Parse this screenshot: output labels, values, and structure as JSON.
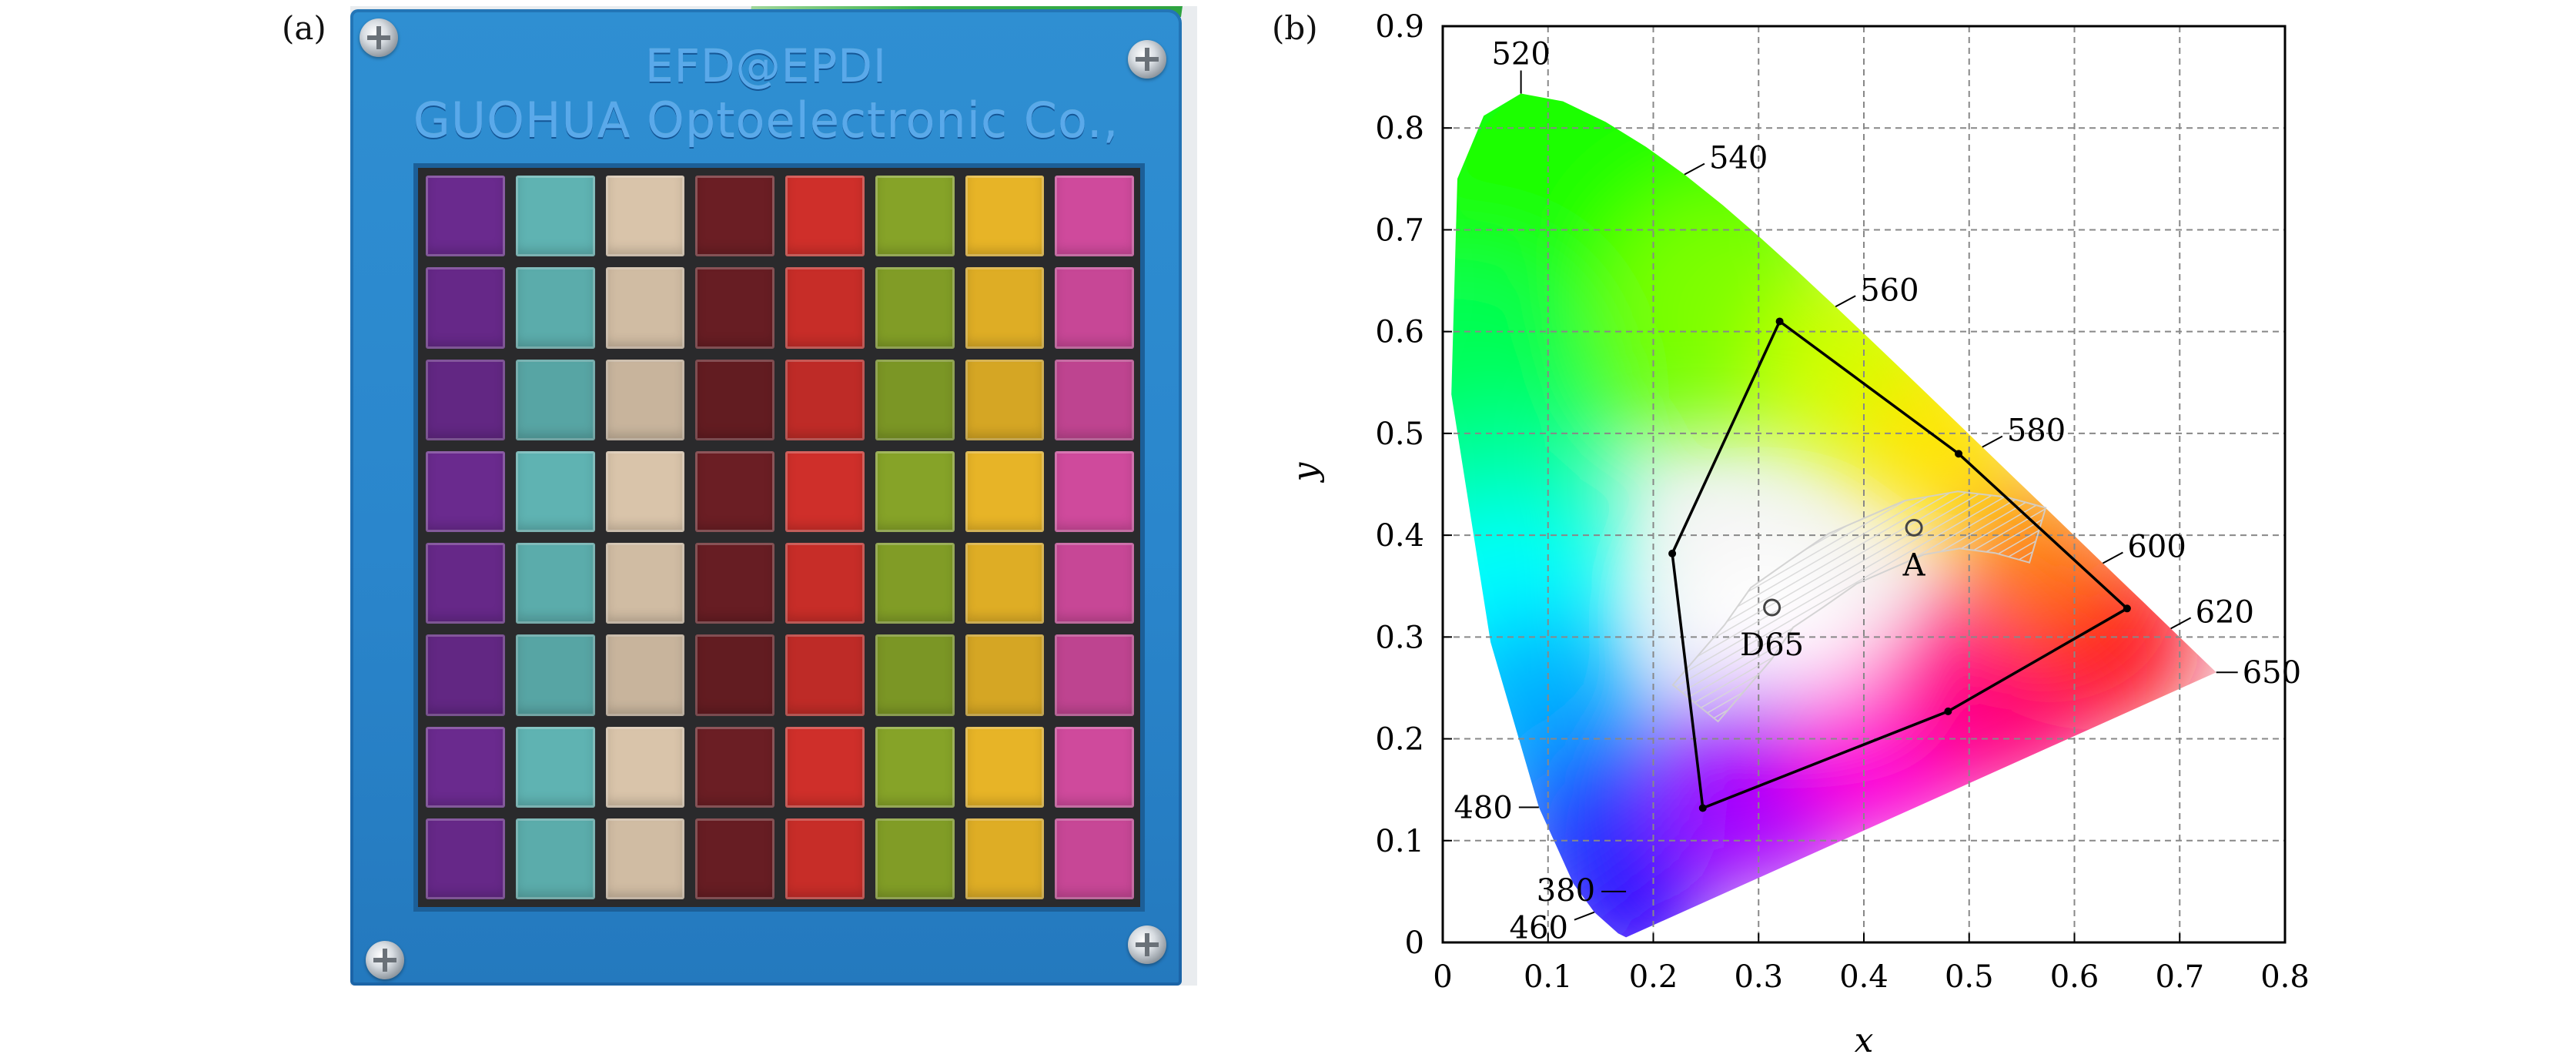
{
  "panels": {
    "a": {
      "label": "(a)"
    },
    "b": {
      "label": "(b)"
    }
  },
  "photo": {
    "plate_line1": "EFD@EPDI",
    "plate_line2": "GUOHUA Optoelectronic Co.,",
    "column_colors": [
      "#6a2a8e",
      "#5fb3b2",
      "#d9c4aa",
      "#6b1e24",
      "#cf2f2a",
      "#86a328",
      "#e7b427",
      "#cf4a9c"
    ]
  },
  "chart_data": {
    "type": "scatter",
    "xlabel": "x",
    "ylabel": "y",
    "xlim": [
      0,
      0.8
    ],
    "ylim": [
      0,
      0.9
    ],
    "xticks": [
      "0",
      "0.1",
      "0.2",
      "0.3",
      "0.4",
      "0.5",
      "0.6",
      "0.7",
      "0.8"
    ],
    "yticks": [
      "0",
      "0.1",
      "0.2",
      "0.3",
      "0.4",
      "0.5",
      "0.6",
      "0.7",
      "0.8",
      "0.9"
    ],
    "grid": true,
    "spectral_locus": [
      [
        0.1741,
        0.005
      ],
      [
        0.1666,
        0.0089
      ],
      [
        0.144,
        0.0297
      ],
      [
        0.1241,
        0.0578
      ],
      [
        0.0913,
        0.1327
      ],
      [
        0.0454,
        0.295
      ],
      [
        0.0082,
        0.5384
      ],
      [
        0.0139,
        0.7502
      ],
      [
        0.0389,
        0.812
      ],
      [
        0.0743,
        0.8338
      ],
      [
        0.1142,
        0.8262
      ],
      [
        0.1547,
        0.8059
      ],
      [
        0.1929,
        0.7816
      ],
      [
        0.2296,
        0.7543
      ],
      [
        0.2658,
        0.7243
      ],
      [
        0.3016,
        0.6923
      ],
      [
        0.3373,
        0.6589
      ],
      [
        0.3731,
        0.6245
      ],
      [
        0.4087,
        0.5896
      ],
      [
        0.4441,
        0.5547
      ],
      [
        0.4788,
        0.5202
      ],
      [
        0.5125,
        0.4866
      ],
      [
        0.5448,
        0.4544
      ],
      [
        0.5752,
        0.4242
      ],
      [
        0.6029,
        0.3965
      ],
      [
        0.627,
        0.3725
      ],
      [
        0.6482,
        0.3514
      ],
      [
        0.6658,
        0.334
      ],
      [
        0.6915,
        0.3083
      ],
      [
        0.7347,
        0.2653
      ]
    ],
    "wavelength_labels": [
      {
        "text": "520",
        "x": 0.0743,
        "y": 0.8338
      },
      {
        "text": "540",
        "x": 0.2296,
        "y": 0.7543
      },
      {
        "text": "560",
        "x": 0.3731,
        "y": 0.6245
      },
      {
        "text": "580",
        "x": 0.5125,
        "y": 0.4866
      },
      {
        "text": "600",
        "x": 0.627,
        "y": 0.3725
      },
      {
        "text": "620",
        "x": 0.6915,
        "y": 0.3083
      },
      {
        "text": "650",
        "x": 0.7347,
        "y": 0.2653
      },
      {
        "text": "480",
        "x": 0.0913,
        "y": 0.1327
      },
      {
        "text": "380",
        "x": 0.1741,
        "y": 0.05
      },
      {
        "text": "460",
        "x": 0.144,
        "y": 0.0297
      }
    ],
    "gamut_polygon": [
      [
        0.32,
        0.61
      ],
      [
        0.49,
        0.48
      ],
      [
        0.65,
        0.328
      ],
      [
        0.48,
        0.227
      ],
      [
        0.247,
        0.132
      ],
      [
        0.218,
        0.382
      ]
    ],
    "reference_points": [
      {
        "name": "D65",
        "x": 0.3127,
        "y": 0.329
      },
      {
        "name": "A",
        "x": 0.4476,
        "y": 0.4074
      }
    ],
    "planckian_locus": [
      [
        0.24,
        0.235
      ],
      [
        0.265,
        0.265
      ],
      [
        0.29,
        0.295
      ],
      [
        0.3127,
        0.329
      ],
      [
        0.345,
        0.352
      ],
      [
        0.38,
        0.377
      ],
      [
        0.4476,
        0.4074
      ],
      [
        0.49,
        0.415
      ],
      [
        0.53,
        0.41
      ],
      [
        0.565,
        0.4
      ]
    ]
  }
}
